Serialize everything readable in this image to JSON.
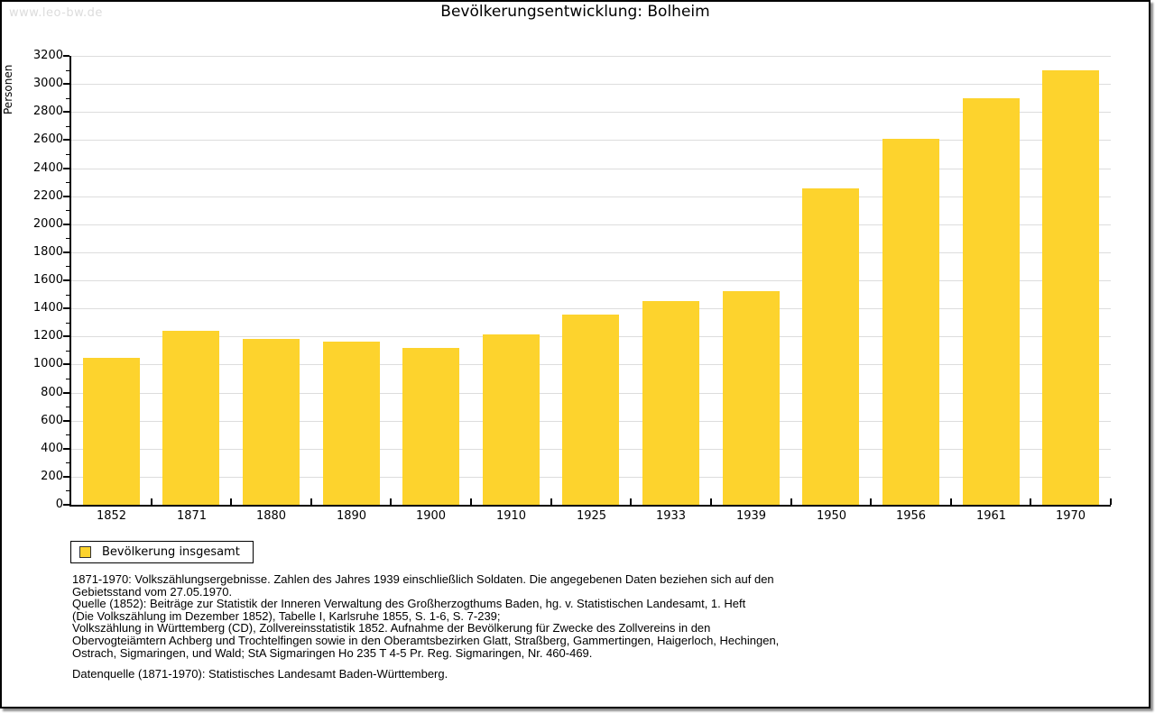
{
  "watermark": "www.leo-bw.de",
  "chart_data": {
    "type": "bar",
    "title": "Bevölkerungsentwicklung: Bolheim",
    "xlabel": "",
    "ylabel": "Personen",
    "categories": [
      "1852",
      "1871",
      "1880",
      "1890",
      "1900",
      "1910",
      "1925",
      "1933",
      "1939",
      "1950",
      "1956",
      "1961",
      "1970"
    ],
    "values": [
      1050,
      1240,
      1180,
      1160,
      1115,
      1215,
      1355,
      1450,
      1520,
      2255,
      2610,
      2900,
      3100
    ],
    "series_name": "Bevölkerung insgesamt",
    "ylim": [
      0,
      3200
    ],
    "ytick_step": 200,
    "y_minor_tick_step": 100,
    "grid": "horizontal-major",
    "legend_position": "bottom-left",
    "bar_color": "#fdd32d",
    "grid_color": "#dddddd"
  },
  "legend": {
    "label": "Bevölkerung insgesamt"
  },
  "footnotes": [
    "1871-1970: Volkszählungsergebnisse. Zahlen des Jahres 1939 einschließlich Soldaten. Die angegebenen Daten beziehen sich auf den",
    "Gebietsstand vom 27.05.1970.",
    "Quelle (1852): Beiträge zur Statistik der Inneren Verwaltung des Großherzogthums Baden, hg. v. Statistischen Landesamt, 1. Heft",
    "(Die Volkszählung im Dezember 1852), Tabelle I, Karlsruhe 1855, S. 1-6, S. 7-239;",
    "Volkszählung in Württemberg (CD), Zollvereinsstatistik 1852. Aufnahme der Bevölkerung für Zwecke des Zollvereins in den",
    "Obervogteiämtern Achberg und Trochtelfingen sowie in den Oberamtsbezirken Glatt, Straßberg, Gammertingen, Haigerloch, Hechingen,",
    "Ostrach, Sigmaringen, und Wald; StA Sigmaringen Ho 235 T 4-5 Pr. Reg. Sigmaringen, Nr. 460-469."
  ],
  "datasource": "Datenquelle (1871-1970): Statistisches Landesamt Baden-Württemberg."
}
